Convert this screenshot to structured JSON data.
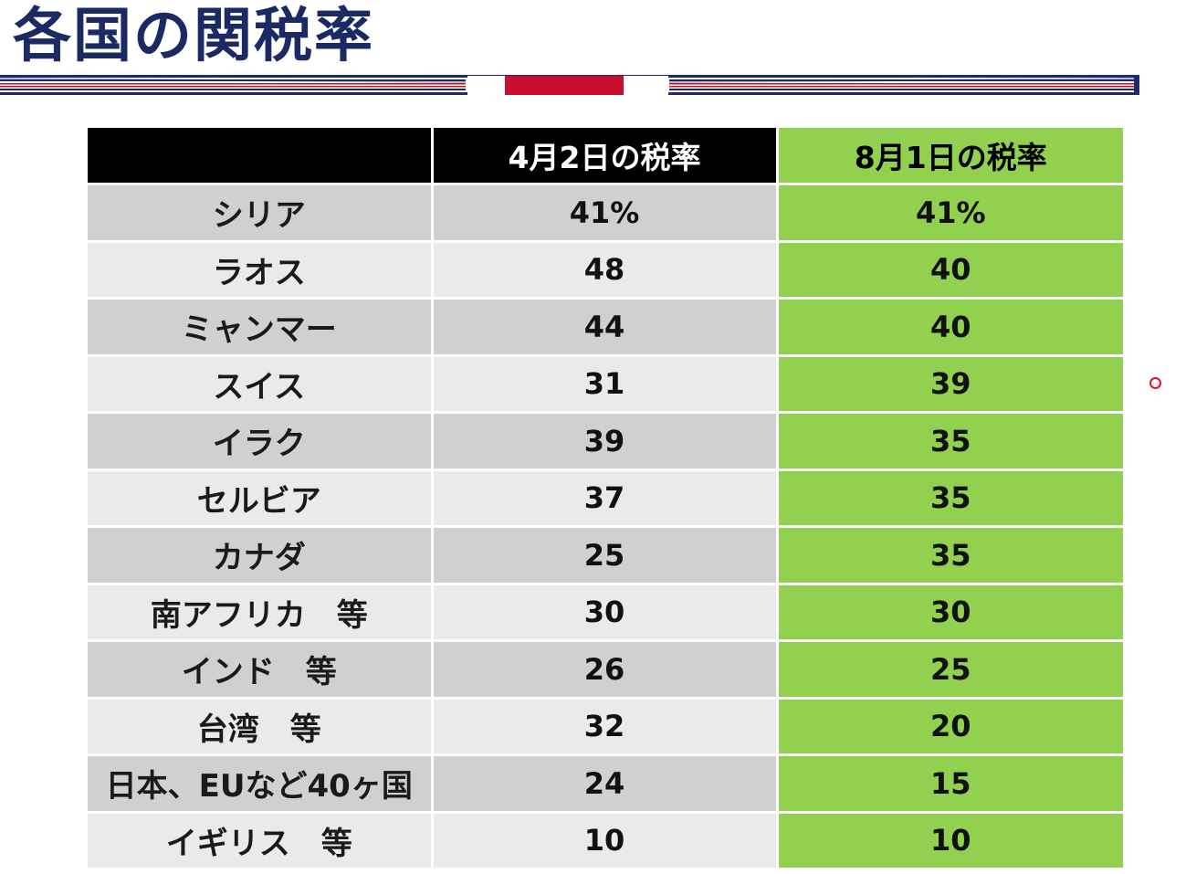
{
  "title": "各国の関税率",
  "colors": {
    "title": "#1c2a63",
    "header_dark": "#000000",
    "highlight_green": "#92d050",
    "row_gray_dark": "#d0d0d0",
    "row_gray_light": "#e9ebeb",
    "band_navy": "#1f2a6b",
    "band_red": "#c8102e",
    "cursor": "#e2102a"
  },
  "table": {
    "headers": {
      "country": "",
      "apr": "4月2日の税率",
      "aug": "8月1日の税率"
    },
    "rows": [
      {
        "country": "シリア",
        "apr": "41%",
        "aug": "41%"
      },
      {
        "country": "ラオス",
        "apr": "48",
        "aug": "40"
      },
      {
        "country": "ミャンマー",
        "apr": "44",
        "aug": "40"
      },
      {
        "country": "スイス",
        "apr": "31",
        "aug": "39"
      },
      {
        "country": "イラク",
        "apr": "39",
        "aug": "35"
      },
      {
        "country": "セルビア",
        "apr": "37",
        "aug": "35"
      },
      {
        "country": "カナダ",
        "apr": "25",
        "aug": "35"
      },
      {
        "country": "南アフリカ　等",
        "apr": "30",
        "aug": "30"
      },
      {
        "country": "インド　等",
        "apr": "26",
        "aug": "25"
      },
      {
        "country": "台湾　等",
        "apr": "32",
        "aug": "20"
      },
      {
        "country": "日本、EUなど40ヶ国",
        "apr": "24",
        "aug": "15"
      },
      {
        "country": "イギリス　等",
        "apr": "10",
        "aug": "10"
      }
    ]
  },
  "cursor_icon": "cursor-dot-icon"
}
